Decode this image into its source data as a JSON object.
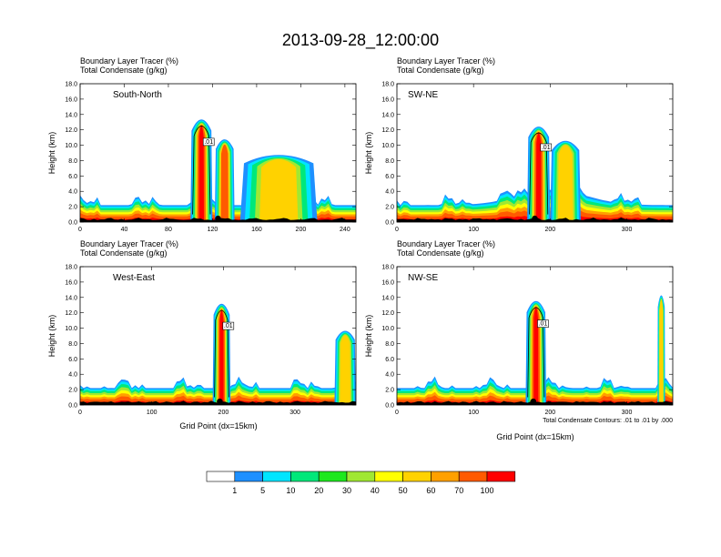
{
  "title": "2013-09-28_12:00:00",
  "header_line1": "Boundary Layer Tracer   (%)",
  "header_line2": "Total Condensate   (g/kg)",
  "ylabel": "Height (km)",
  "xlabel": "Grid Point (dx=15km)",
  "contour_note": "Total Condensate Contours: .01 to .01 by .000",
  "contour_label": ".01",
  "y_ticks": [
    "0.0",
    "2.0",
    "4.0",
    "6.0",
    "8.0",
    "10.0",
    "12.0",
    "14.0",
    "16.0",
    "18.0"
  ],
  "colorbar": {
    "levels": [
      "1",
      "5",
      "10",
      "20",
      "30",
      "40",
      "50",
      "60",
      "70",
      "100"
    ],
    "colors": [
      "#ffffff",
      "#1e90ff",
      "#00e5ff",
      "#00e87a",
      "#1ee81e",
      "#a0e832",
      "#ffff00",
      "#ffd200",
      "#ffa000",
      "#ff5a00",
      "#ff0000"
    ]
  },
  "chart_data": [
    {
      "type": "heatmap",
      "name": "South-North",
      "x_ticks": [
        "0",
        "40",
        "80",
        "120",
        "160",
        "200",
        "240"
      ],
      "xlim": [
        0,
        250
      ],
      "ylim": [
        0,
        18
      ],
      "surface_point": 125,
      "plumes": [
        {
          "x0": 100,
          "x1": 120,
          "top": 14.0,
          "intensity": 0.9
        },
        {
          "x0": 122,
          "x1": 140,
          "top": 11.2,
          "intensity": 0.85
        },
        {
          "x0": 145,
          "x1": 215,
          "top": 9.0,
          "intensity": 0.5
        }
      ]
    },
    {
      "type": "heatmap",
      "name": "SW-NE",
      "x_ticks": [
        "0",
        "100",
        "200",
        "300"
      ],
      "xlim": [
        0,
        360
      ],
      "ylim": [
        0,
        18
      ],
      "surface_point": 180,
      "plumes": [
        {
          "x0": 170,
          "x1": 200,
          "top": 13.0,
          "intensity": 0.95
        },
        {
          "x0": 200,
          "x1": 240,
          "top": 11.0,
          "intensity": 0.4
        }
      ]
    },
    {
      "type": "heatmap",
      "name": "West-East",
      "x_ticks": [
        "0",
        "100",
        "200",
        "300"
      ],
      "xlim": [
        0,
        385
      ],
      "ylim": [
        0,
        18
      ],
      "surface_point": 195,
      "plumes": [
        {
          "x0": 185,
          "x1": 210,
          "top": 13.8,
          "intensity": 0.95
        },
        {
          "x0": 355,
          "x1": 385,
          "top": 10.0,
          "intensity": 0.5
        }
      ]
    },
    {
      "type": "heatmap",
      "name": "NW-SE",
      "x_ticks": [
        "0",
        "100",
        "200",
        "300"
      ],
      "xlim": [
        0,
        360
      ],
      "ylim": [
        0,
        18
      ],
      "surface_point": 178,
      "plumes": [
        {
          "x0": 168,
          "x1": 195,
          "top": 14.2,
          "intensity": 0.95
        },
        {
          "x0": 340,
          "x1": 350,
          "top": 15.0,
          "intensity": 0.4
        }
      ]
    }
  ]
}
